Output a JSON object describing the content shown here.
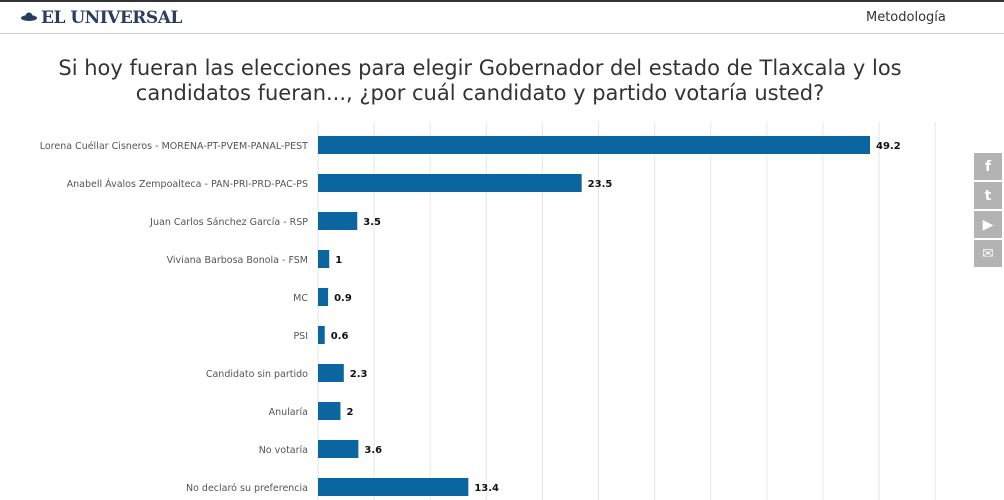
{
  "header": {
    "logo": "EL UNIVERSAL",
    "methodology_link": "Metodología"
  },
  "social": [
    {
      "icon": "facebook-icon",
      "glyph": "f"
    },
    {
      "icon": "twitter-icon",
      "glyph": "t"
    },
    {
      "icon": "youtube-icon",
      "glyph": "▶"
    },
    {
      "icon": "email-icon",
      "glyph": "✉"
    }
  ],
  "colors": {
    "bar": "#0b65a0",
    "grid": "#e6e6e6"
  },
  "chart_data": {
    "type": "bar",
    "orientation": "horizontal",
    "title": "Si hoy fueran las elecciones para elegir Gobernador del estado de Tlaxcala y los candidatos fueran..., ¿por cuál candidato y partido votaría usted?",
    "categories": [
      "Lorena Cuéllar Cisneros - MORENA-PT-PVEM-PANAL-PEST",
      "Anabell Ávalos Zempoalteca - PAN-PRI-PRD-PAC-PS",
      "Juan Carlos Sánchez García - RSP",
      "Viviana Barbosa Bonola - FSM",
      "MC",
      "PSI",
      "Candidato sin partido",
      "Anularía",
      "No votaría",
      "No declaró su preferencia"
    ],
    "values": [
      49.2,
      23.5,
      3.5,
      1,
      0.9,
      0.6,
      2.3,
      2,
      3.6,
      13.4
    ],
    "data_labels": [
      "49.2",
      "23.5",
      "3.5",
      "1",
      "0.9",
      "0.6",
      "2.3",
      "2",
      "3.6",
      "13.4"
    ],
    "xlim": [
      0,
      55
    ],
    "grid_step": 5,
    "grid": true,
    "xlabel": "",
    "ylabel": ""
  }
}
